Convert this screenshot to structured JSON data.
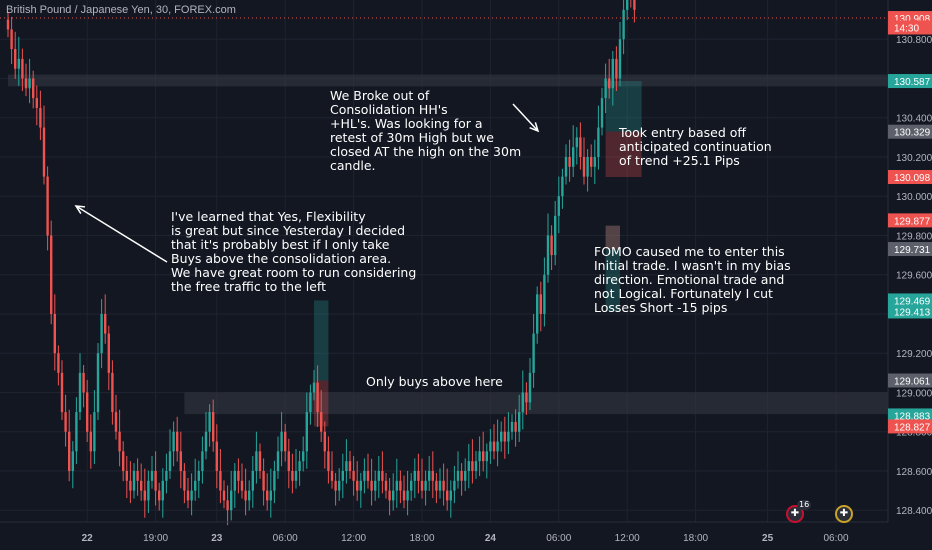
{
  "symbol_label": "British Pound / Japanese Yen, 30, FOREX.com",
  "annotations": {
    "breakout": "We Broke out of\nConsolidation HH's\n+HL's. Was looking for a\nretest of 30m High but we\nclosed AT the high on the 30m\ncandle.",
    "flexibility": "I've learned that Yes, Flexibility\nis great but since Yesterday I decided\nthat it's probably best if I only take\nBuys above the consolidation area.\nWe have great room to run considering\nthe free traffic to the left",
    "entry": "Took entry based off\nanticipated continuation\nof trend +25.1 Pips",
    "fomo": "FOMO caused me to enter this\nInitial trade. I wasn't in my bias\ndirection. Emotional trade and\nnot Logical. Fortunately I cut\nLosses Short -15 pips",
    "only_buys": "Only buys above here"
  },
  "events": {
    "gb_count": "16",
    "gb_icon": "uk-flag-icon"
  },
  "colors": {
    "background": "#131722",
    "up": "#26a69a",
    "down": "#ef5350",
    "grid": "#1f2330",
    "axis_text": "#b2b5be",
    "zone": "#363a45"
  },
  "chart_data": {
    "type": "candlestick",
    "title": "British Pound / Japanese Yen, 30, FOREX.com",
    "y_ticks": [
      128.4,
      128.6,
      128.8,
      129.0,
      129.2,
      129.4,
      129.6,
      129.8,
      130.0,
      130.2,
      130.4,
      130.6,
      130.8
    ],
    "x_ticks": [
      "22",
      "19:00",
      "23",
      "06:00",
      "12:00",
      "18:00",
      "24",
      "06:00",
      "12:00",
      "18:00",
      "25",
      "06:00"
    ],
    "ylim": [
      128.34,
      131.0
    ],
    "price_tags": [
      {
        "value": 130.908,
        "label": "130.908",
        "color": "#ef5350"
      },
      {
        "value": 130.86,
        "label": "14:30",
        "color": "#ef5350"
      },
      {
        "value": 130.587,
        "label": "130.587",
        "color": "#26a69a"
      },
      {
        "value": 130.329,
        "label": "130.329",
        "color": "#5d606b"
      },
      {
        "value": 130.098,
        "label": "130.098",
        "color": "#ef5350"
      },
      {
        "value": 129.877,
        "label": "129.877",
        "color": "#ef5350"
      },
      {
        "value": 129.731,
        "label": "129.731",
        "color": "#5d606b"
      },
      {
        "value": 129.469,
        "label": "129.469",
        "color": "#26a69a"
      },
      {
        "value": 129.413,
        "label": "129.413",
        "color": "#26a69a"
      },
      {
        "value": 129.061,
        "label": "129.061",
        "color": "#5d606b"
      },
      {
        "value": 128.883,
        "label": "128.883",
        "color": "#26a69a"
      },
      {
        "value": 128.827,
        "label": "128.827",
        "color": "#ef5350"
      }
    ],
    "zones": [
      {
        "name": "upper-consolidation-zone",
        "y1": 130.62,
        "y2": 130.56,
        "x_start": 0
      },
      {
        "name": "consolidation-zone",
        "y1": 129.0,
        "y2": 128.89,
        "x_start": 49
      }
    ],
    "positions": [
      {
        "name": "fomo-trade",
        "x_start": 166,
        "x_end": 170,
        "entry": 129.85,
        "stop": 129.731,
        "target": 129.413,
        "target_color": "#26a69a",
        "stop_color": "#ef5350"
      },
      {
        "name": "entry-trade",
        "x_start": 166,
        "x_end": 176,
        "entry": 130.329,
        "stop": 130.098,
        "target": 130.587,
        "target_color": "#26a69a",
        "stop_color": "#ef5350"
      },
      {
        "name": "old-trade",
        "x_start": 85,
        "x_end": 89,
        "entry": 129.061,
        "stop": 128.827,
        "target": 129.469,
        "target_color": "#26a69a",
        "stop_color": "#ef5350"
      }
    ],
    "closes": [
      130.85,
      130.75,
      130.65,
      130.7,
      130.6,
      130.55,
      130.6,
      130.5,
      130.45,
      130.35,
      130.1,
      129.8,
      129.4,
      129.2,
      129.1,
      128.9,
      128.8,
      128.6,
      128.7,
      128.9,
      129.1,
      129.0,
      128.8,
      128.7,
      128.9,
      129.2,
      129.4,
      129.3,
      129.1,
      128.9,
      128.8,
      128.7,
      128.6,
      128.55,
      128.5,
      128.6,
      128.55,
      128.5,
      128.45,
      128.55,
      128.6,
      128.5,
      128.45,
      128.55,
      128.6,
      128.7,
      128.8,
      128.7,
      128.6,
      128.5,
      128.45,
      128.5,
      128.55,
      128.6,
      128.7,
      128.8,
      128.9,
      128.75,
      128.6,
      128.5,
      128.45,
      128.4,
      128.5,
      128.6,
      128.55,
      128.5,
      128.45,
      128.5,
      128.6,
      128.7,
      128.6,
      128.5,
      128.45,
      128.5,
      128.6,
      128.7,
      128.8,
      128.7,
      128.6,
      128.55,
      128.6,
      128.65,
      128.7,
      128.9,
      129.0,
      129.05,
      128.9,
      128.8,
      128.7,
      128.6,
      128.55,
      128.5,
      128.55,
      128.6,
      128.65,
      128.6,
      128.55,
      128.5,
      128.55,
      128.6,
      128.55,
      128.5,
      128.55,
      128.6,
      128.55,
      128.5,
      128.45,
      128.5,
      128.55,
      128.5,
      128.45,
      128.5,
      128.55,
      128.6,
      128.55,
      128.5,
      128.55,
      128.6,
      128.55,
      128.5,
      128.55,
      128.5,
      128.45,
      128.5,
      128.55,
      128.6,
      128.55,
      128.6,
      128.65,
      128.6,
      128.65,
      128.7,
      128.65,
      128.7,
      128.75,
      128.7,
      128.75,
      128.8,
      128.75,
      128.8,
      128.85,
      128.8,
      128.9,
      129.0,
      128.95,
      129.1,
      129.3,
      129.5,
      129.4,
      129.6,
      129.8,
      129.7,
      129.9,
      130.0,
      130.1,
      130.2,
      130.15,
      130.25,
      130.3,
      130.2,
      130.1,
      130.2,
      130.15,
      130.2,
      130.35,
      130.5,
      130.6,
      130.55,
      130.7,
      130.6,
      130.8,
      130.95,
      131.2,
      131.05,
      130.95
    ]
  }
}
